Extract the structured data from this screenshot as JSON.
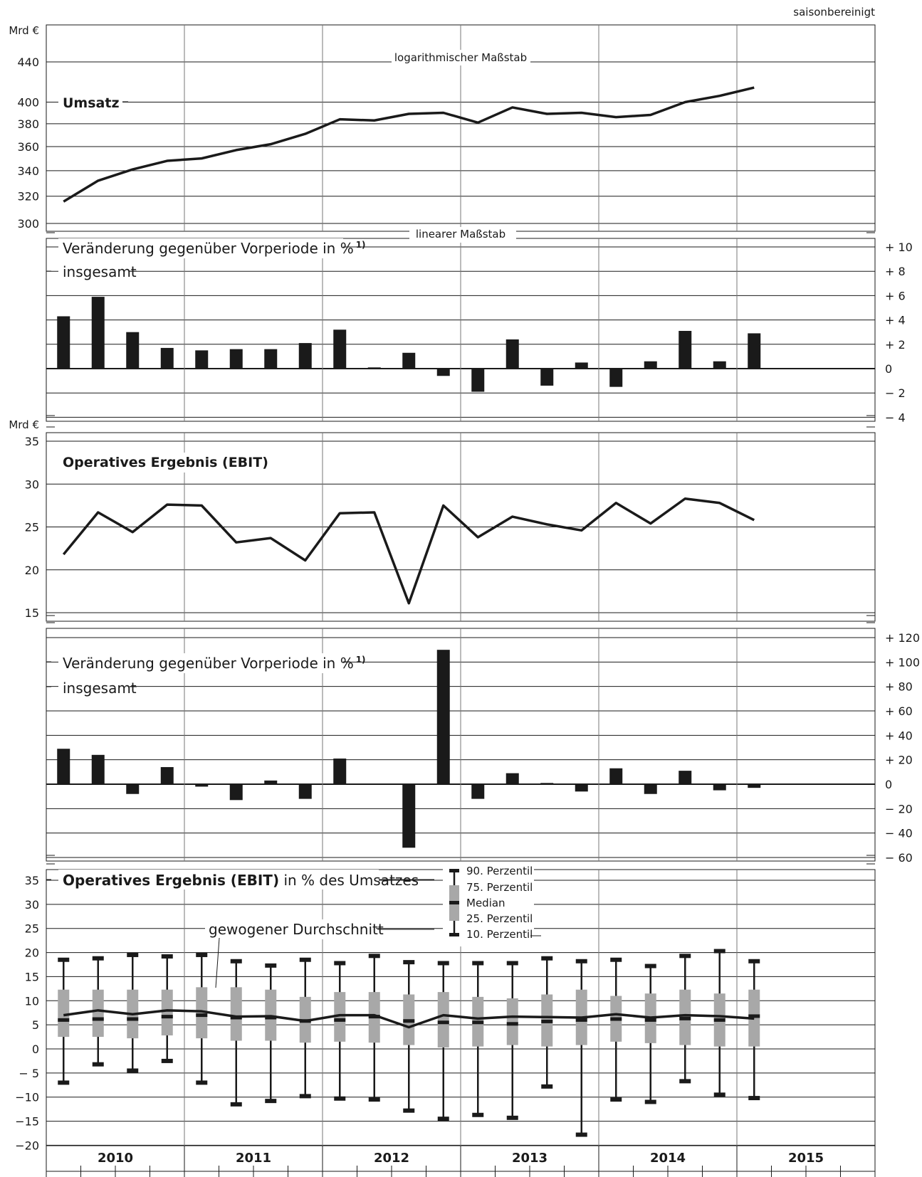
{
  "header": {
    "note": "saisonbereinigt"
  },
  "years": [
    "2010",
    "2011",
    "2012",
    "2013",
    "2014",
    "2015"
  ],
  "chart_data": [
    {
      "id": "umsatz",
      "type": "line",
      "title": "Umsatz",
      "unit_label": "Mrd €",
      "scale_note": "logarithmischer Maßstab",
      "log_scale": true,
      "ylim": [
        295,
        460
      ],
      "yticks": [
        300,
        320,
        340,
        360,
        380,
        400,
        440
      ],
      "series": [
        {
          "values": [
            316,
            332,
            341,
            348,
            350,
            357,
            362,
            371,
            384,
            383,
            389,
            390,
            381,
            395,
            389,
            390,
            386,
            388,
            400,
            406,
            414
          ]
        }
      ]
    },
    {
      "id": "umsatz_change",
      "type": "bar",
      "scale_note": "linearer Maßstab",
      "label_change": "Veränderung gegenüber Vorperiode in %",
      "label_change_sup": "1)",
      "label_total": "insgesamt",
      "ylim": [
        -4,
        10
      ],
      "ytick_labels": [
        {
          "v": 10,
          "t": "+ 10"
        },
        {
          "v": 8,
          "t": "+ 8"
        },
        {
          "v": 6,
          "t": "+ 6"
        },
        {
          "v": 4,
          "t": "+ 4"
        },
        {
          "v": 2,
          "t": "+ 2"
        },
        {
          "v": 0,
          "t": "0"
        },
        {
          "v": -2,
          "t": "− 2"
        },
        {
          "v": -4,
          "t": "− 4"
        }
      ],
      "values": [
        4.3,
        5.9,
        3.0,
        1.7,
        1.5,
        1.6,
        1.6,
        2.1,
        3.2,
        0.1,
        1.3,
        -0.6,
        -1.9,
        2.4,
        -1.4,
        0.5,
        -1.5,
        0.6,
        3.1,
        0.6,
        2.9
      ]
    },
    {
      "id": "ebit",
      "type": "line",
      "title": "Operatives Ergebnis (EBIT)",
      "unit_label": "Mrd €",
      "ylim": [
        14,
        36
      ],
      "yticks": [
        15,
        20,
        25,
        30,
        35
      ],
      "series": [
        {
          "values": [
            21.8,
            26.7,
            24.4,
            27.6,
            27.5,
            23.2,
            23.7,
            21.1,
            26.6,
            26.7,
            16.1,
            27.5,
            23.8,
            26.2,
            25.3,
            24.6,
            27.8,
            25.4,
            28.3,
            27.8,
            25.8
          ]
        }
      ]
    },
    {
      "id": "ebit_change",
      "type": "bar",
      "label_change": "Veränderung gegenüber Vorperiode in %",
      "label_change_sup": "1)",
      "label_total": "insgesamt",
      "ylim": [
        -60,
        120
      ],
      "ytick_labels": [
        {
          "v": 120,
          "t": "+ 120"
        },
        {
          "v": 100,
          "t": "+ 100"
        },
        {
          "v": 80,
          "t": "+ 80"
        },
        {
          "v": 60,
          "t": "+ 60"
        },
        {
          "v": 40,
          "t": "+ 40"
        },
        {
          "v": 20,
          "t": "+ 20"
        },
        {
          "v": 0,
          "t": "0"
        },
        {
          "v": -20,
          "t": "− 20"
        },
        {
          "v": -40,
          "t": "− 40"
        },
        {
          "v": -60,
          "t": "− 60"
        }
      ],
      "values": [
        29,
        24,
        -8,
        14,
        -2,
        -13,
        3,
        -12,
        21,
        0,
        -52,
        110,
        -12,
        9,
        1,
        -6,
        13,
        -8,
        11,
        -5,
        -3
      ]
    },
    {
      "id": "ebit_margin",
      "type": "boxplot",
      "title_bold": "Operatives Ergebnis (EBIT)",
      "title_rest": " in % des Umsatzes",
      "avg_label": "gewogener Durchschnitt",
      "legend": [
        "90. Perzentil",
        "75. Perzentil",
        "Median",
        "25. Perzentil",
        "10. Perzentil"
      ],
      "ylim": [
        -20,
        35
      ],
      "ytick_labels": [
        {
          "v": 35,
          "t": "35"
        },
        {
          "v": 30,
          "t": "30"
        },
        {
          "v": 25,
          "t": "25"
        },
        {
          "v": 20,
          "t": "20"
        },
        {
          "v": 15,
          "t": "15"
        },
        {
          "v": 10,
          "t": "10"
        },
        {
          "v": 5,
          "t": "5"
        },
        {
          "v": 0,
          "t": "0"
        },
        {
          "v": -5,
          "t": "− 5"
        },
        {
          "v": -10,
          "t": "−10"
        },
        {
          "v": -15,
          "t": "−15"
        },
        {
          "v": -20,
          "t": "−20"
        }
      ],
      "p90": [
        18.5,
        18.8,
        19.5,
        19.2,
        19.5,
        18.2,
        17.3,
        18.5,
        17.8,
        19.3,
        18.0,
        17.8,
        17.8,
        17.8,
        18.8,
        18.2,
        18.5,
        17.2,
        19.3,
        20.3,
        18.2
      ],
      "p75": [
        12.3,
        12.3,
        12.3,
        12.3,
        12.8,
        12.8,
        12.3,
        10.8,
        11.8,
        11.8,
        11.3,
        11.8,
        10.8,
        10.5,
        11.3,
        12.3,
        11.0,
        11.5,
        12.3,
        11.5,
        12.3
      ],
      "median": [
        6.0,
        6.2,
        6.2,
        6.7,
        7.0,
        6.5,
        6.5,
        5.8,
        6.0,
        6.7,
        5.8,
        5.5,
        5.5,
        5.2,
        5.7,
        6.0,
        6.2,
        6.0,
        6.3,
        6.0,
        6.8
      ],
      "p25": [
        2.5,
        2.5,
        2.2,
        2.8,
        2.2,
        1.7,
        1.7,
        1.3,
        1.5,
        1.3,
        0.8,
        0.3,
        0.5,
        0.8,
        0.5,
        0.8,
        1.5,
        1.2,
        0.8,
        0.5,
        0.5
      ],
      "p10": [
        -7.0,
        -3.2,
        -4.5,
        -2.5,
        -7.0,
        -11.5,
        -10.8,
        -9.8,
        -10.3,
        -10.5,
        -12.8,
        -14.5,
        -13.7,
        -14.3,
        -7.8,
        -17.8,
        -10.5,
        -11.0,
        -6.7,
        -9.5,
        -10.2
      ],
      "weighted_avg": [
        7.0,
        8.0,
        7.2,
        8.0,
        7.8,
        6.7,
        6.8,
        5.8,
        7.0,
        7.0,
        4.5,
        7.0,
        6.3,
        6.7,
        6.6,
        6.5,
        7.2,
        6.5,
        7.0,
        6.8,
        6.3
      ]
    }
  ]
}
